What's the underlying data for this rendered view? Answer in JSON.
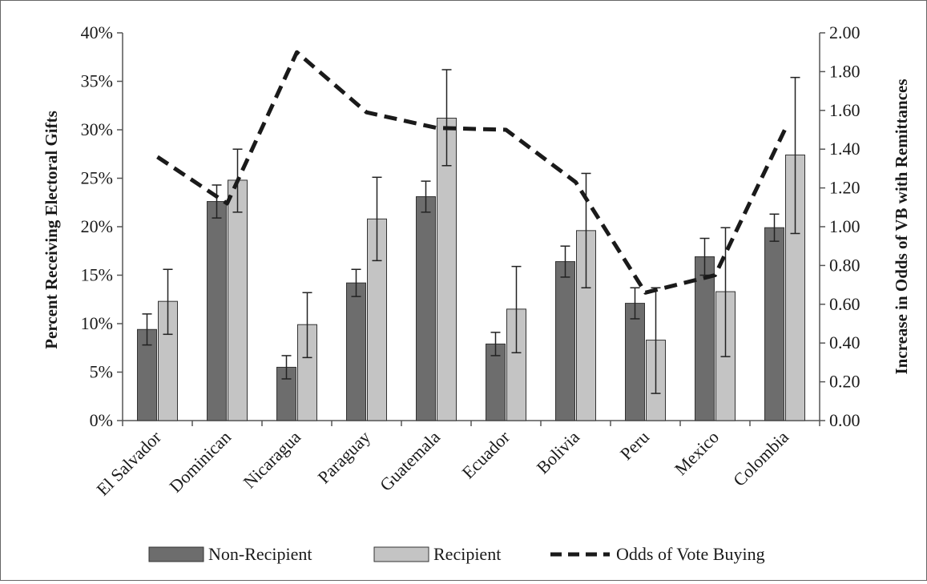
{
  "chart_data": {
    "type": "bar",
    "categories": [
      "El Salvador",
      "Dominican",
      "Nicaragua",
      "Paraguay",
      "Guatemala",
      "Ecuador",
      "Bolivia",
      "Peru",
      "Mexico",
      "Colombia"
    ],
    "series": [
      {
        "name": "Non-Recipient",
        "type": "bar",
        "axis": "left",
        "color": "#6d6d6d",
        "values": [
          9.4,
          22.6,
          5.5,
          14.2,
          23.1,
          7.9,
          16.4,
          12.1,
          16.9,
          19.9
        ],
        "error_low": [
          7.8,
          20.9,
          4.3,
          12.8,
          21.5,
          6.7,
          14.8,
          10.5,
          15.0,
          18.5
        ],
        "error_high": [
          11.0,
          24.3,
          6.7,
          15.6,
          24.7,
          9.1,
          18.0,
          13.7,
          18.8,
          21.3
        ]
      },
      {
        "name": "Recipient",
        "type": "bar",
        "axis": "left",
        "color": "#c4c4c4",
        "values": [
          12.3,
          24.8,
          9.9,
          20.8,
          31.2,
          11.5,
          19.6,
          8.3,
          13.3,
          27.4
        ],
        "error_low": [
          8.9,
          21.5,
          6.5,
          16.5,
          26.3,
          7.0,
          13.7,
          2.8,
          6.6,
          19.3
        ],
        "error_high": [
          15.6,
          28.0,
          13.2,
          25.1,
          36.2,
          15.9,
          25.5,
          13.7,
          19.9,
          35.4
        ]
      },
      {
        "name": "Odds of Vote Buying",
        "type": "line",
        "axis": "right",
        "color": "#1a1a1a",
        "dashed": true,
        "values": [
          1.36,
          1.12,
          1.9,
          1.59,
          1.51,
          1.5,
          1.23,
          0.66,
          0.75,
          1.5
        ]
      }
    ],
    "ylabel": "Percent Receiving Electoral Gifts",
    "ylabel_right": "Increase in Odds of VB with Remittances",
    "ylim": [
      0,
      40
    ],
    "ylim_right": [
      0,
      2.0
    ],
    "yticks": [
      "0%",
      "5%",
      "10%",
      "15%",
      "20%",
      "25%",
      "30%",
      "35%",
      "40%"
    ],
    "yticks_right": [
      "0.00",
      "0.20",
      "0.40",
      "0.60",
      "0.80",
      "1.00",
      "1.20",
      "1.40",
      "1.60",
      "1.80",
      "2.00"
    ],
    "grid": false,
    "legend_position": "bottom"
  }
}
